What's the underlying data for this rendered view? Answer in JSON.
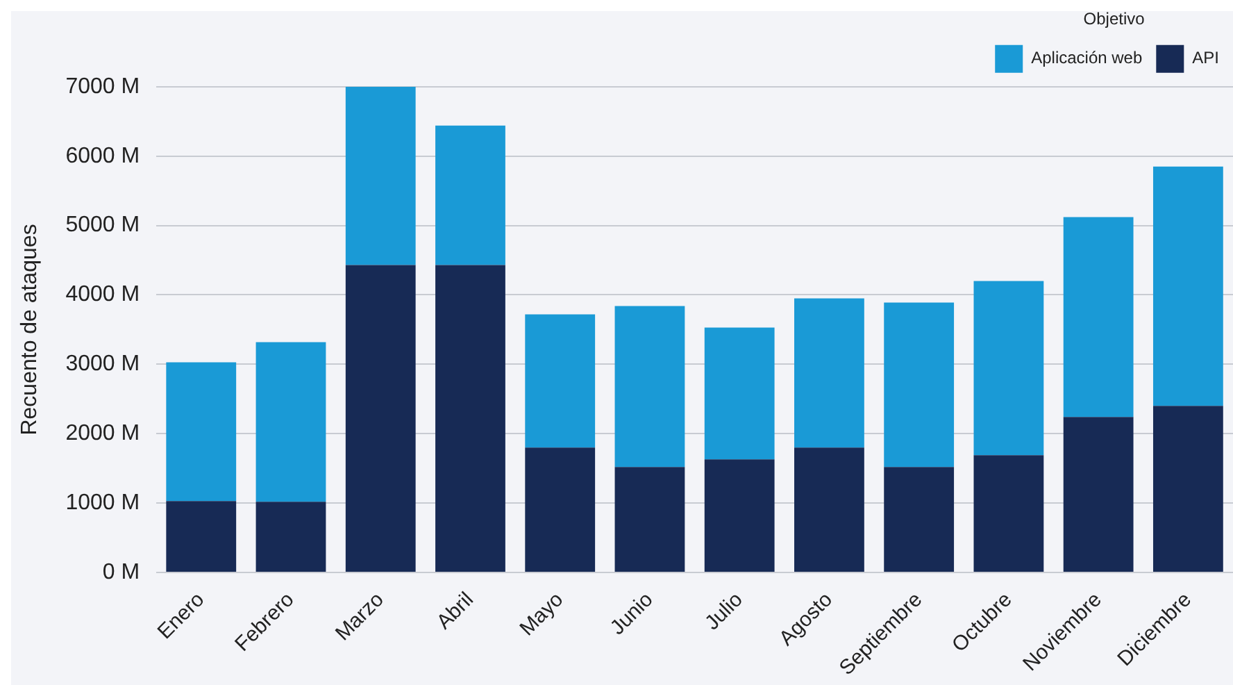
{
  "chart_data": {
    "type": "bar",
    "stacked": true,
    "ylabel": "Recuento de ataques",
    "legend_title": "Objetivo",
    "legend": "top right",
    "grid": "y",
    "categories": [
      "Enero",
      "Febrero",
      "Marzo",
      "Abril",
      "Mayo",
      "Junio",
      "Julio",
      "Agosto",
      "Septiembre",
      "Octubre",
      "Noviembre",
      "Diciembre"
    ],
    "series": [
      {
        "name": "API",
        "color": "#172a55",
        "values": [
          1030,
          1020,
          4430,
          4430,
          1800,
          1520,
          1630,
          1800,
          1520,
          1690,
          2240,
          2400
        ]
      },
      {
        "name": "Aplicación web",
        "color": "#1a9ad6",
        "values": [
          2000,
          2300,
          2570,
          2010,
          1920,
          2320,
          1900,
          2150,
          2370,
          2510,
          2880,
          3450
        ]
      }
    ],
    "ylim": [
      0,
      7000
    ],
    "yticks": [
      {
        "value": 0,
        "label": "0 M"
      },
      {
        "value": 1000,
        "label": "1000 M"
      },
      {
        "value": 2000,
        "label": "2000 M"
      },
      {
        "value": 3000,
        "label": "3000 M"
      },
      {
        "value": 4000,
        "label": "4000 M"
      },
      {
        "value": 5000,
        "label": "5000 M"
      },
      {
        "value": 6000,
        "label": "6000 M"
      },
      {
        "value": 7000,
        "label": "7000 M"
      }
    ]
  }
}
